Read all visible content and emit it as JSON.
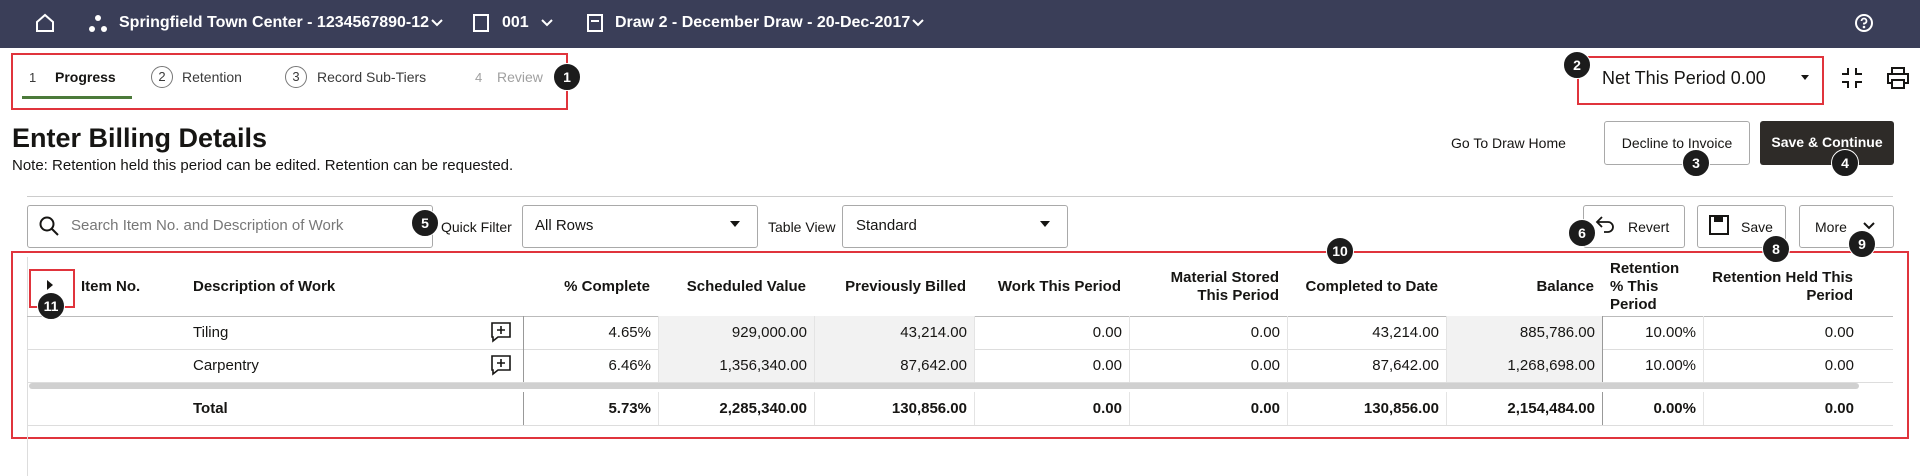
{
  "topbar": {
    "project": "Springfield Town Center - 1234567890-12",
    "commitment": "001",
    "draw": "Draw 2 - December Draw - 20-Dec-2017"
  },
  "steps": [
    {
      "number": "1",
      "label": "Progress"
    },
    {
      "number": "2",
      "label": "Retention"
    },
    {
      "number": "3",
      "label": "Record Sub-Tiers"
    },
    {
      "number": "4",
      "label": "Review"
    }
  ],
  "net_this_period": "Net This Period 0.00",
  "heading": {
    "title": "Enter Billing Details",
    "note": "Note: Retention held this period can be edited. Retention can be requested."
  },
  "actions": [
    "Go To Draw Home",
    "Decline to Invoice",
    "Save & Continue"
  ],
  "toolbar": {
    "search_placeholder": "Search Item No. and Description of Work",
    "quick_filter_label": "Quick Filter",
    "quick_filter_value": "All Rows",
    "table_view_label": "Table View",
    "table_view_value": "Standard",
    "buttons": [
      "Revert",
      "Save",
      "More"
    ]
  },
  "table": {
    "columns": [
      "Item No.",
      "Description of Work",
      "% Complete",
      "Scheduled Value",
      "Previously Billed",
      "Work This Period",
      "Material Stored This Period",
      "Completed to Date",
      "Balance",
      "Retention % This Period",
      "Retention Held This Period"
    ],
    "rows": [
      {
        "description": "Tiling",
        "cells": [
          "4.65%",
          "929,000.00",
          "43,214.00",
          "0.00",
          "0.00",
          "43,214.00",
          "885,786.00",
          "10.00%",
          "0.00"
        ]
      },
      {
        "description": "Carpentry",
        "cells": [
          "6.46%",
          "1,356,340.00",
          "87,642.00",
          "0.00",
          "0.00",
          "87,642.00",
          "1,268,698.00",
          "10.00%",
          "0.00"
        ]
      }
    ],
    "total": {
      "label": "Total",
      "cells": [
        "5.73%",
        "2,285,340.00",
        "130,856.00",
        "0.00",
        "0.00",
        "130,856.00",
        "2,154,484.00",
        "0.00%",
        "0.00"
      ]
    }
  },
  "callouts": [
    "1",
    "2",
    "3",
    "4",
    "5",
    "6",
    "8",
    "9",
    "10",
    "11"
  ]
}
